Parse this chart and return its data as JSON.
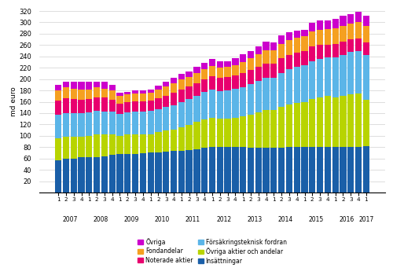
{
  "ylabel": "md euro",
  "ylim": [
    0,
    320
  ],
  "yticks": [
    0,
    20,
    40,
    60,
    80,
    100,
    120,
    140,
    160,
    180,
    200,
    220,
    240,
    260,
    280,
    300,
    320
  ],
  "colors": [
    "#1a5fa8",
    "#b8d400",
    "#5bb5e8",
    "#e8006e",
    "#f5a020",
    "#cc00cc"
  ],
  "quarters": [
    "1",
    "2",
    "3",
    "4",
    "1",
    "2",
    "3",
    "4",
    "1",
    "2",
    "3",
    "4",
    "1",
    "2",
    "3",
    "4",
    "1",
    "2",
    "3",
    "4",
    "1",
    "2",
    "3",
    "4",
    "1",
    "2",
    "3",
    "4",
    "1",
    "2",
    "3",
    "4",
    "1",
    "2",
    "3",
    "4",
    "1",
    "2",
    "3",
    "4",
    "1"
  ],
  "year_labels": [
    "2007",
    "2008",
    "2009",
    "2010",
    "2011",
    "2012",
    "2013",
    "2014",
    "2015",
    "2016",
    "2017"
  ],
  "year_positions": [
    1.5,
    5.5,
    9.5,
    13.5,
    17.5,
    21.5,
    25.5,
    29.5,
    33.5,
    37.5,
    40
  ],
  "Insättningar": [
    57,
    59,
    60,
    62,
    63,
    63,
    64,
    67,
    68,
    68,
    68,
    69,
    70,
    71,
    72,
    73,
    74,
    75,
    76,
    79,
    80,
    80,
    80,
    80,
    80,
    79,
    79,
    79,
    79,
    79,
    80,
    80,
    80,
    80,
    80,
    80,
    80,
    80,
    81,
    81,
    82
  ],
  "Övriga aktier och andelar": [
    38,
    39,
    38,
    37,
    37,
    39,
    38,
    35,
    32,
    34,
    35,
    34,
    33,
    35,
    37,
    38,
    41,
    44,
    48,
    50,
    52,
    50,
    50,
    52,
    54,
    58,
    62,
    66,
    66,
    72,
    75,
    78,
    80,
    85,
    88,
    90,
    88,
    90,
    92,
    93,
    82
  ],
  "Försäkringsteknisk fordran": [
    42,
    42,
    42,
    41,
    41,
    42,
    41,
    40,
    39,
    39,
    40,
    40,
    41,
    41,
    42,
    43,
    44,
    46,
    47,
    48,
    49,
    49,
    50,
    51,
    52,
    54,
    56,
    57,
    57,
    60,
    62,
    63,
    64,
    67,
    68,
    68,
    70,
    73,
    75,
    76,
    78
  ],
  "Noterade aktier": [
    25,
    26,
    25,
    24,
    24,
    24,
    24,
    22,
    18,
    18,
    18,
    18,
    18,
    19,
    20,
    22,
    23,
    22,
    22,
    23,
    24,
    23,
    23,
    23,
    24,
    25,
    25,
    25,
    25,
    26,
    26,
    25,
    25,
    25,
    24,
    23,
    24,
    23,
    22,
    22,
    23
  ],
  "Fondandelar": [
    18,
    19,
    18,
    17,
    17,
    17,
    16,
    16,
    14,
    14,
    14,
    14,
    14,
    15,
    16,
    17,
    17,
    17,
    18,
    18,
    18,
    18,
    18,
    19,
    20,
    21,
    22,
    24,
    24,
    25,
    26,
    27,
    26,
    27,
    27,
    27,
    28,
    28,
    28,
    28,
    28
  ],
  "Övriga": [
    10,
    11,
    13,
    15,
    13,
    11,
    12,
    10,
    5,
    5,
    5,
    5,
    5,
    7,
    8,
    9,
    10,
    9,
    10,
    11,
    12,
    11,
    11,
    12,
    14,
    13,
    14,
    15,
    14,
    15,
    14,
    13,
    12,
    15,
    16,
    15,
    16,
    17,
    17,
    18,
    18
  ]
}
